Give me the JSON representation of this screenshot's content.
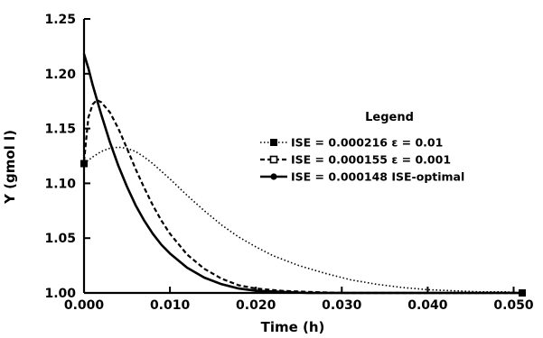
{
  "chart_data": {
    "type": "line",
    "xlabel": "Time (h)",
    "ylabel": "Y (gmol l)",
    "xlim": [
      0.0,
      0.051
    ],
    "ylim": [
      1.0,
      1.25
    ],
    "x_ticks": [
      0.0,
      0.01,
      0.02,
      0.03,
      0.04,
      0.05
    ],
    "x_tick_labels": [
      "0.000",
      "0.010",
      "0.020",
      "0.030",
      "0.040",
      "0.050"
    ],
    "y_ticks": [
      1.0,
      1.05,
      1.1,
      1.15,
      1.2,
      1.25
    ],
    "y_tick_labels": [
      "1.00",
      "1.05",
      "1.10",
      "1.15",
      "1.20",
      "1.25"
    ],
    "grid": false,
    "legend_title": "Legend",
    "legend_position": "right",
    "series": [
      {
        "name": "ISE = 0.000216 ε = 0.01",
        "style": "dotted",
        "marker": "square",
        "x": [
          0.0,
          0.001,
          0.002,
          0.003,
          0.004,
          0.005,
          0.006,
          0.007,
          0.008,
          0.009,
          0.01,
          0.012,
          0.014,
          0.016,
          0.018,
          0.02,
          0.022,
          0.025,
          0.028,
          0.031,
          0.034,
          0.037,
          0.04,
          0.043,
          0.046,
          0.049,
          0.051
        ],
        "y": [
          1.118,
          1.124,
          1.129,
          1.132,
          1.133,
          1.132,
          1.129,
          1.124,
          1.118,
          1.111,
          1.104,
          1.089,
          1.075,
          1.062,
          1.051,
          1.042,
          1.034,
          1.025,
          1.018,
          1.012,
          1.008,
          1.005,
          1.003,
          1.002,
          1.001,
          1.001,
          1.0
        ]
      },
      {
        "name": "ISE = 0.000155 ε = 0.001",
        "style": "dashed",
        "marker": "open-square",
        "x": [
          0.0,
          0.0005,
          0.001,
          0.0015,
          0.002,
          0.003,
          0.004,
          0.005,
          0.006,
          0.007,
          0.008,
          0.009,
          0.01,
          0.012,
          0.014,
          0.016,
          0.018,
          0.02,
          0.023,
          0.026,
          0.03,
          0.035,
          0.04,
          0.051
        ],
        "y": [
          1.12,
          1.16,
          1.172,
          1.176,
          1.174,
          1.165,
          1.15,
          1.132,
          1.113,
          1.096,
          1.08,
          1.066,
          1.054,
          1.035,
          1.022,
          1.013,
          1.007,
          1.004,
          1.002,
          1.001,
          1.0,
          1.0,
          1.0,
          1.0
        ]
      },
      {
        "name": "ISE = 0.000148 ISE-optimal",
        "style": "solid",
        "marker": "filled-circle",
        "x": [
          0.0,
          0.0005,
          0.001,
          0.002,
          0.003,
          0.004,
          0.005,
          0.006,
          0.007,
          0.008,
          0.009,
          0.01,
          0.012,
          0.014,
          0.016,
          0.018,
          0.02,
          0.023,
          0.026,
          0.03,
          0.035,
          0.04,
          0.051
        ],
        "y": [
          1.218,
          1.205,
          1.19,
          1.163,
          1.138,
          1.116,
          1.097,
          1.08,
          1.066,
          1.054,
          1.044,
          1.036,
          1.023,
          1.014,
          1.008,
          1.004,
          1.002,
          1.001,
          1.0,
          1.0,
          1.0,
          1.0,
          1.0
        ]
      }
    ]
  }
}
